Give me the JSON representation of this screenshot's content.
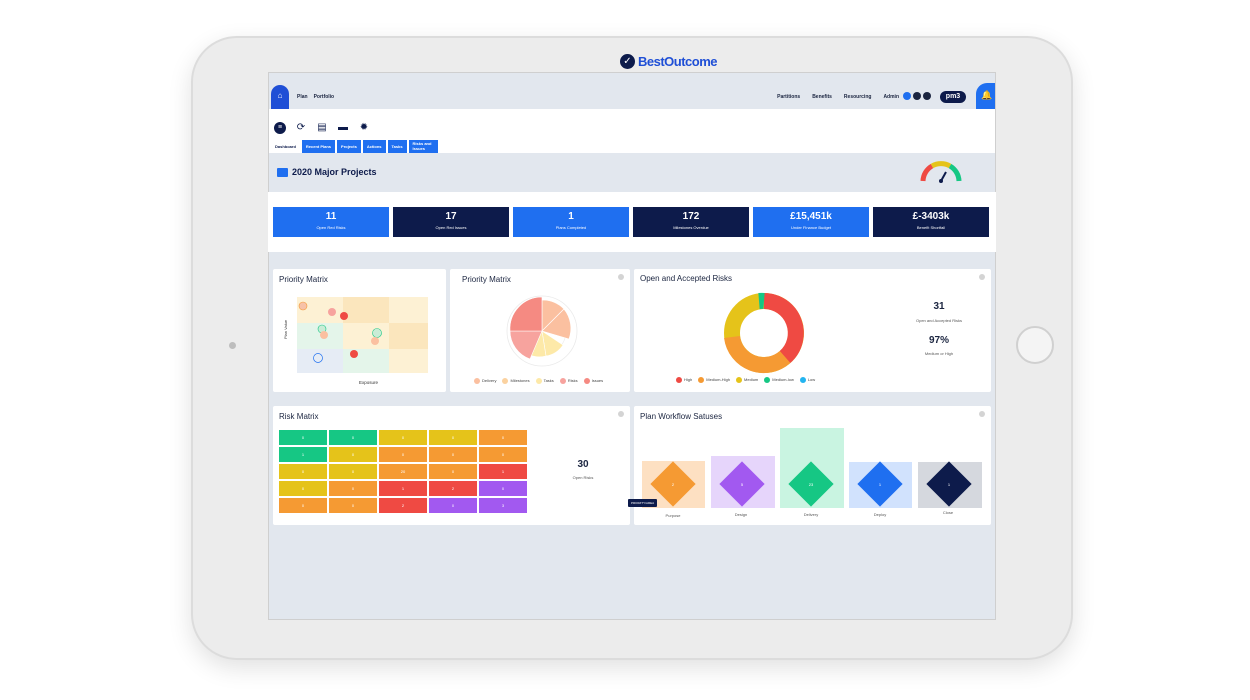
{
  "nav": {
    "left": [
      "Plan",
      "Portfolio"
    ],
    "right": [
      "Partitions",
      "Benefits",
      "Resourcing",
      "Admin"
    ],
    "logo": "pm3"
  },
  "toolbar": {
    "icons": [
      "menu-icon",
      "refresh-icon",
      "print-icon",
      "folder-icon",
      "gear-icon"
    ],
    "tabs": [
      {
        "label": "Dashboard",
        "active": true
      },
      {
        "label": "Recent Plans",
        "active": false
      },
      {
        "label": "Projects",
        "active": false
      },
      {
        "label": "Actions",
        "active": false
      },
      {
        "label": "Tasks",
        "active": false
      },
      {
        "label": "Risks and Issues",
        "active": false
      }
    ],
    "brand": "BestOutcome"
  },
  "page": {
    "title": "2020 Major Projects"
  },
  "kpis": [
    {
      "value": "11",
      "label": "Open Red Risks",
      "style": "blue"
    },
    {
      "value": "17",
      "label": "Open Red Issues",
      "style": "dark"
    },
    {
      "value": "1",
      "label": "Plans Completed",
      "style": "blue"
    },
    {
      "value": "172",
      "label": "Milestones Overdue",
      "style": "dark"
    },
    {
      "value": "£15,451k",
      "label": "Under Finance Budget",
      "style": "blue"
    },
    {
      "value": "£-3403k",
      "label": "Benefit Shortfall",
      "style": "dark"
    }
  ],
  "priority_matrix_1": {
    "title": "Priority Matrix",
    "ylabel": "Plan Value",
    "xlabel": "Exposure"
  },
  "priority_matrix_2": {
    "title": "Priority Matrix",
    "legend": [
      "Delivery",
      "Milestones",
      "Tasks",
      "Risks",
      "Issues"
    ]
  },
  "open_risks": {
    "title": "Open and Accepted Risks",
    "total": "31",
    "total_label": "Open and Accepted Risks",
    "percent": "97%",
    "percent_label": "Medium or High",
    "legend": [
      "High",
      "Medium-High",
      "Medium",
      "Medium-low",
      "Low"
    ]
  },
  "risk_matrix": {
    "title": "Risk Matrix",
    "cells": [
      [
        "0",
        "0",
        "0",
        "0",
        "0"
      ],
      [
        "1",
        "0",
        "0",
        "0",
        "0"
      ],
      [
        "0",
        "0",
        "20",
        "0",
        "1"
      ],
      [
        "0",
        "0",
        "1",
        "2",
        "0"
      ],
      [
        "0",
        "0",
        "2",
        "0",
        "3"
      ]
    ],
    "total": "30",
    "total_label": "Open Risks"
  },
  "workflow": {
    "title": "Plan Workflow Satuses",
    "stages": [
      {
        "label": "Purpose",
        "count": "2"
      },
      {
        "label": "Design",
        "count": "5"
      },
      {
        "label": "Delivery",
        "count": "23"
      },
      {
        "label": "Deploy",
        "count": "1"
      },
      {
        "label": "Close",
        "count": "1"
      }
    ],
    "tooltip": "PRIORITY/AREA"
  },
  "colors": {
    "blue": "#1f6ff0",
    "navy": "#0d1b4b",
    "green": "#16c784",
    "yellow": "#e5c31a",
    "orange": "#f59a33",
    "red": "#ef4a43",
    "purple": "#a259f0"
  }
}
